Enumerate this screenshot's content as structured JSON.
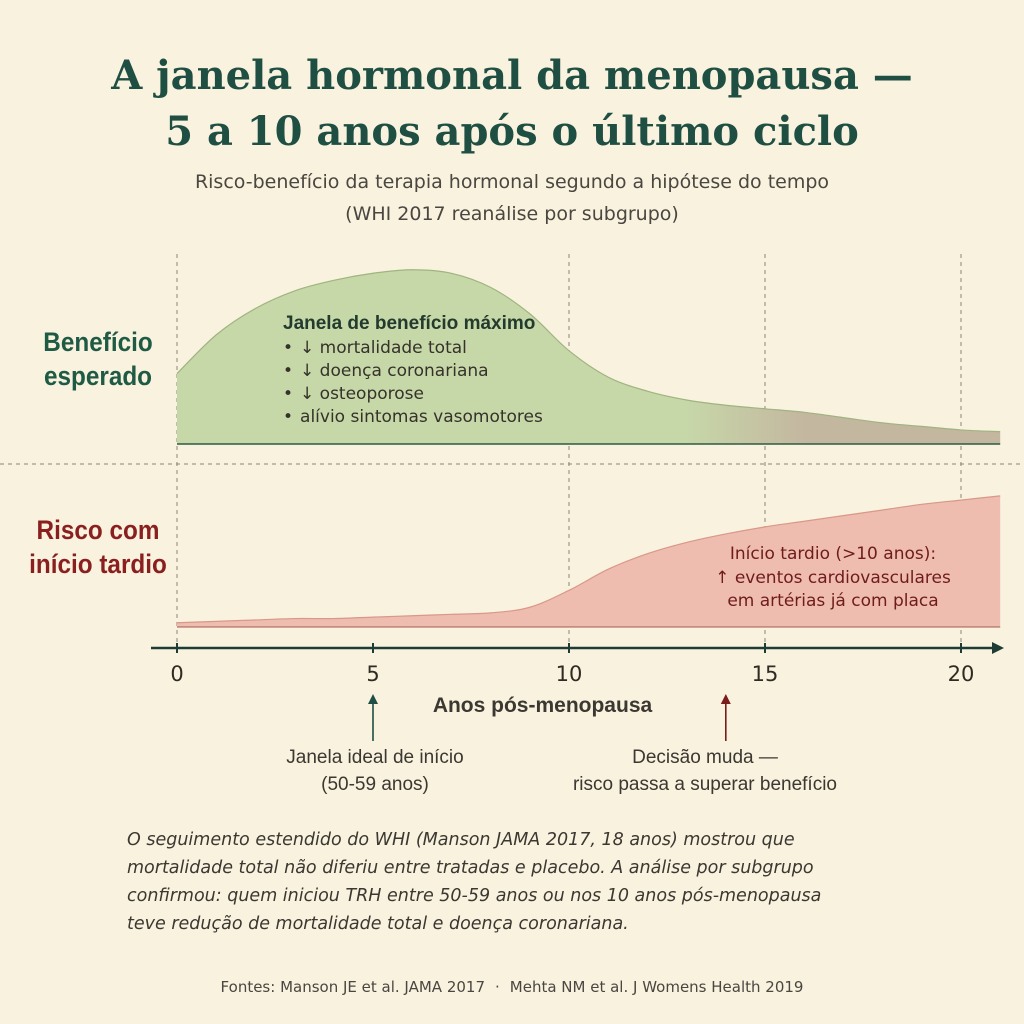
{
  "title_line1": "A janela hormonal da menopausa —",
  "title_line2": "5 a 10 anos após o último ciclo",
  "subtitle_line1": "Risco-benefício da terapia hormonal segundo a hipótese do tempo",
  "subtitle_line2": "(WHI 2017 reanálise por subgrupo)",
  "bands": {
    "benefit": {
      "line1": "Benefício",
      "line2": "esperado"
    },
    "risk": {
      "line1": "Risco com",
      "line2": "início tardio"
    }
  },
  "annotations": {
    "benefit_head": "Janela de benefício máximo",
    "benefit_items": [
      "↓ mortalidade total",
      "↓ doença coronariana",
      "↓ osteoporose",
      "alívio sintomas vasomotores"
    ],
    "risk_line1": "Início tardio (>10 anos):",
    "risk_line2": "↑ eventos cardiovasculares",
    "risk_line3": "em artérias já com placa"
  },
  "markers": {
    "ideal_line1": "Janela ideal de início",
    "ideal_line2": "(50-59 anos)",
    "decision_line1": "Decisão muda —",
    "decision_line2": "risco passa a superar benefício"
  },
  "paragraph": [
    "O seguimento estendido do WHI (Manson JAMA 2017, 18 anos) mostrou que",
    "mortalidade total não diferiu entre tratadas e placebo. A análise por subgrupo",
    "confirmou: quem iniciou TRH entre 50-59 anos ou nos 10 anos pós-menopausa",
    "teve redução de mortalidade total e doença coronariana."
  ],
  "sources": {
    "source1": "Fontes: Manson JE et al. JAMA 2017",
    "separator": "·",
    "source2": "Mehta NM et al. J Womens Health 2019"
  },
  "colors": {
    "background": "#f8f2df",
    "benefit_fill": "#c6d7a8",
    "benefit_fill_late": "#c4b7a0",
    "risk_fill": "#efbcb0",
    "title": "#1f4f43",
    "risk_text": "#8a1f1f",
    "axis": "#1f3b35"
  },
  "chart_data": {
    "type": "area",
    "xlabel": "Anos pós-menopausa",
    "xlim": [
      0,
      21
    ],
    "xticks": [
      0,
      5,
      10,
      15,
      20
    ],
    "vertical_gridlines": [
      0,
      10,
      15,
      20
    ],
    "series": [
      {
        "name": "Benefício esperado",
        "x": [
          0,
          1,
          2,
          3,
          4,
          5,
          6,
          7,
          8,
          9,
          10,
          11,
          12,
          13,
          14,
          15,
          16,
          17,
          18,
          19,
          20,
          21
        ],
        "values": [
          0.4,
          0.62,
          0.77,
          0.87,
          0.93,
          0.97,
          0.99,
          0.97,
          0.89,
          0.74,
          0.53,
          0.38,
          0.3,
          0.25,
          0.22,
          0.2,
          0.18,
          0.15,
          0.12,
          0.1,
          0.08,
          0.07
        ]
      },
      {
        "name": "Risco com início tardio",
        "x": [
          0,
          1,
          2,
          3,
          4,
          5,
          6,
          7,
          8,
          9,
          10,
          11,
          12,
          13,
          14,
          15,
          16,
          17,
          18,
          19,
          20,
          21
        ],
        "values": [
          0.03,
          0.04,
          0.05,
          0.06,
          0.06,
          0.07,
          0.08,
          0.09,
          0.1,
          0.14,
          0.26,
          0.41,
          0.52,
          0.6,
          0.66,
          0.71,
          0.75,
          0.79,
          0.83,
          0.87,
          0.9,
          0.93
        ]
      }
    ],
    "markers": [
      {
        "x": 5,
        "direction": "up",
        "label": "ideal"
      },
      {
        "x": 14,
        "direction": "up",
        "label": "decision"
      }
    ]
  }
}
